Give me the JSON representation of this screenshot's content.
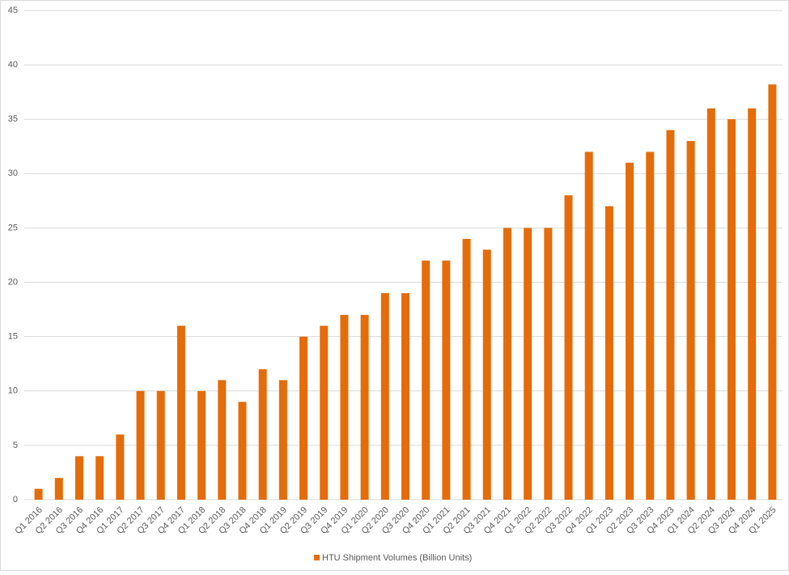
{
  "chart_data": {
    "type": "bar",
    "categories": [
      "Q1 2016",
      "Q2 2016",
      "Q3 2016",
      "Q4 2016",
      "Q1 2017",
      "Q2 2017",
      "Q3 2017",
      "Q4 2017",
      "Q1 2018",
      "Q2 2018",
      "Q3 2018",
      "Q4 2018",
      "Q1 2019",
      "Q2 2019",
      "Q3 2019",
      "Q4 2019",
      "Q1 2020",
      "Q2 2020",
      "Q3 2020",
      "Q4 2020",
      "Q1 2021",
      "Q2 2021",
      "Q3 2021",
      "Q4 2021",
      "Q1 2022",
      "Q2 2022",
      "Q3 2022",
      "Q4 2022",
      "Q1 2023",
      "Q2 2023",
      "Q3 2023",
      "Q4 2023",
      "Q1 2024",
      "Q2 2024",
      "Q3 2024",
      "Q4 2024",
      "Q1 2025"
    ],
    "series": [
      {
        "name": "HTU Shipment Volumes (Billion Units)",
        "color": "#e46c0a",
        "values": [
          1,
          2,
          4,
          4,
          6,
          10,
          10,
          16,
          10,
          11,
          9,
          12,
          11,
          15,
          16,
          17,
          17,
          19,
          19,
          22,
          22,
          24,
          23,
          25,
          25,
          25,
          28,
          32,
          27,
          31,
          32,
          34,
          33,
          36,
          35,
          36,
          38.2
        ]
      }
    ],
    "ylim": [
      0,
      45
    ],
    "yticks": [
      0,
      5,
      10,
      15,
      20,
      25,
      30,
      35,
      40,
      45
    ],
    "grid": true,
    "legend": "bottom"
  }
}
